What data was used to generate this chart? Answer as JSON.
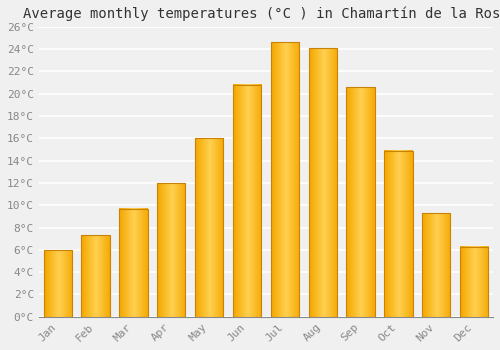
{
  "title": "Average monthly temperatures (°C ) in Chamartín de la Rosa",
  "months": [
    "Jan",
    "Feb",
    "Mar",
    "Apr",
    "May",
    "Jun",
    "Jul",
    "Aug",
    "Sep",
    "Oct",
    "Nov",
    "Dec"
  ],
  "values": [
    6.0,
    7.3,
    9.7,
    12.0,
    16.0,
    20.8,
    24.6,
    24.1,
    20.6,
    14.9,
    9.3,
    6.3
  ],
  "bar_color_light": "#FFD050",
  "bar_color_dark": "#F5A800",
  "bar_edge_color": "#C8820A",
  "ylim": [
    0,
    26
  ],
  "yticks": [
    0,
    2,
    4,
    6,
    8,
    10,
    12,
    14,
    16,
    18,
    20,
    22,
    24,
    26
  ],
  "ytick_labels": [
    "0°C",
    "2°C",
    "4°C",
    "6°C",
    "8°C",
    "10°C",
    "12°C",
    "14°C",
    "16°C",
    "18°C",
    "20°C",
    "22°C",
    "24°C",
    "26°C"
  ],
  "background_color": "#f0f0f0",
  "plot_bg_color": "#f0f0f0",
  "grid_color": "#ffffff",
  "title_fontsize": 10,
  "tick_fontsize": 8,
  "font_family": "monospace",
  "tick_color": "#888888",
  "bar_width": 0.75
}
